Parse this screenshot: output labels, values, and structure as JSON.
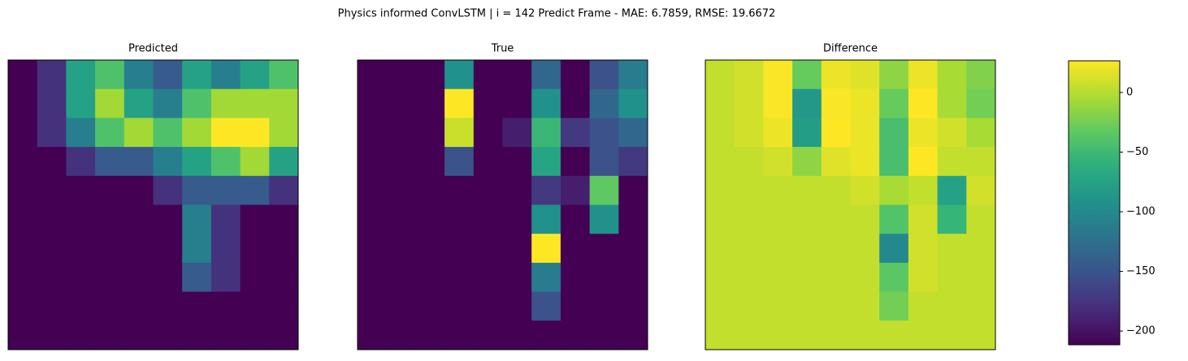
{
  "title": "Physics informed ConvLSTM | i = 142 Predict Frame - MAE: 6.7859, RMSE: 19.6672",
  "chart_data": [
    {
      "type": "heatmap",
      "title": "Predicted",
      "colormap": "viridis",
      "values": [
        [
          5,
          10,
          25,
          30,
          20,
          15,
          25,
          20,
          25,
          30
        ],
        [
          5,
          10,
          25,
          35,
          25,
          20,
          30,
          35,
          35,
          35
        ],
        [
          5,
          10,
          20,
          30,
          35,
          30,
          35,
          40,
          40,
          35
        ],
        [
          5,
          5,
          10,
          15,
          15,
          20,
          25,
          30,
          35,
          25
        ],
        [
          5,
          5,
          5,
          5,
          5,
          10,
          15,
          15,
          15,
          10
        ],
        [
          5,
          5,
          5,
          5,
          5,
          5,
          20,
          10,
          5,
          5
        ],
        [
          5,
          5,
          5,
          5,
          5,
          5,
          20,
          10,
          5,
          5
        ],
        [
          5,
          5,
          5,
          5,
          5,
          5,
          15,
          10,
          5,
          5
        ],
        [
          5,
          5,
          5,
          5,
          5,
          5,
          5,
          5,
          5,
          5
        ],
        [
          5,
          5,
          5,
          5,
          5,
          5,
          5,
          5,
          5,
          5
        ]
      ]
    },
    {
      "type": "heatmap",
      "title": "True",
      "colormap": "viridis",
      "values": [
        [
          0,
          0,
          0,
          60,
          0,
          0,
          40,
          0,
          30,
          50
        ],
        [
          0,
          0,
          0,
          120,
          0,
          0,
          60,
          0,
          40,
          60
        ],
        [
          0,
          0,
          0,
          110,
          0,
          10,
          80,
          20,
          30,
          40
        ],
        [
          0,
          0,
          0,
          30,
          0,
          0,
          70,
          0,
          30,
          20
        ],
        [
          0,
          0,
          0,
          0,
          0,
          0,
          20,
          10,
          90,
          0
        ],
        [
          0,
          0,
          0,
          0,
          0,
          0,
          60,
          0,
          60,
          0
        ],
        [
          0,
          0,
          0,
          0,
          0,
          0,
          120,
          0,
          0,
          0
        ],
        [
          0,
          0,
          0,
          0,
          0,
          0,
          50,
          0,
          0,
          0
        ],
        [
          0,
          0,
          0,
          0,
          0,
          0,
          30,
          0,
          0,
          0
        ],
        [
          0,
          0,
          0,
          0,
          0,
          0,
          0,
          0,
          0,
          0
        ]
      ]
    },
    {
      "type": "heatmap",
      "title": "Difference",
      "colormap": "viridis",
      "values": [
        [
          5,
          10,
          25,
          -30,
          20,
          15,
          -15,
          20,
          -5,
          -20
        ],
        [
          5,
          10,
          25,
          -85,
          25,
          20,
          -30,
          35,
          -5,
          -25
        ],
        [
          5,
          10,
          20,
          -80,
          35,
          20,
          -45,
          20,
          10,
          -5
        ],
        [
          5,
          5,
          10,
          -15,
          15,
          20,
          -45,
          30,
          5,
          5
        ],
        [
          5,
          5,
          5,
          5,
          5,
          10,
          -5,
          5,
          -75,
          10
        ],
        [
          5,
          5,
          5,
          5,
          5,
          5,
          -40,
          10,
          -55,
          5
        ],
        [
          5,
          5,
          5,
          5,
          5,
          5,
          -100,
          10,
          5,
          5
        ],
        [
          5,
          5,
          5,
          5,
          5,
          5,
          -35,
          10,
          5,
          5
        ],
        [
          5,
          5,
          5,
          5,
          5,
          5,
          -25,
          5,
          5,
          5
        ],
        [
          5,
          5,
          5,
          5,
          5,
          5,
          5,
          5,
          5,
          5
        ]
      ],
      "colorbar": {
        "lim": [
          -211.5,
          26.5
        ],
        "ticks": [
          0,
          {
            "value": -50,
            "label": "−50"
          },
          {
            "value": -100,
            "label": "−100"
          },
          {
            "value": -150,
            "label": "−150"
          },
          {
            "value": -200,
            "label": "−200"
          }
        ]
      }
    }
  ]
}
